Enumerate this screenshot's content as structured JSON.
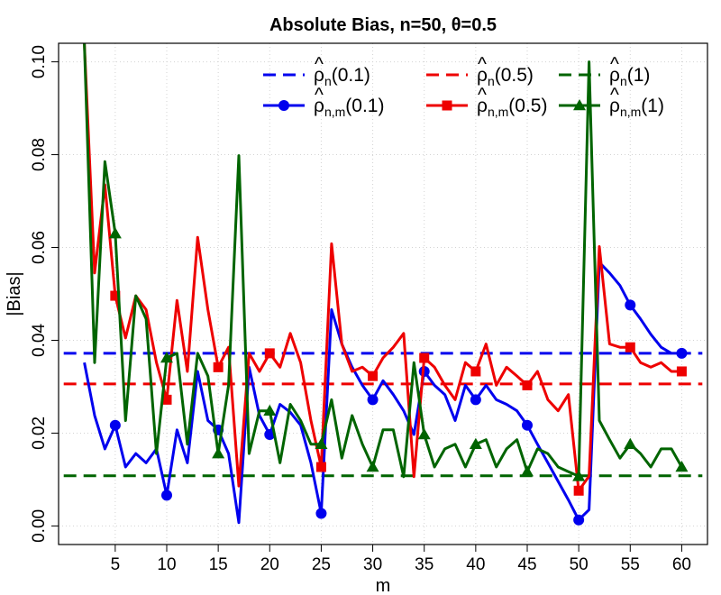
{
  "chart_data": {
    "type": "line",
    "title": "Absolute Bias, n=50, θ=0.5",
    "xlabel": "m",
    "ylabel": "|Bias|",
    "xlim": [
      -0.5,
      62.5
    ],
    "ylim": [
      -0.004,
      0.104
    ],
    "x_ticks": [
      5,
      10,
      15,
      20,
      25,
      30,
      35,
      40,
      45,
      50,
      55,
      60
    ],
    "y_ticks": [
      0.0,
      0.02,
      0.04,
      0.06,
      0.08,
      0.1
    ],
    "y_tick_labels": [
      "0.00",
      "0.02",
      "0.04",
      "0.06",
      "0.08",
      "0.10"
    ],
    "grid": true,
    "legend_placement": "top-right",
    "series": [
      {
        "key": "rho_n_0_1",
        "legend": {
          "base": "ρ",
          "sub": "n",
          "arg": "(0.1)"
        },
        "color": "#0000ee",
        "style": "dashed",
        "marker": "none",
        "x": [
          0,
          62
        ],
        "values": [
          0.0372,
          0.0372
        ]
      },
      {
        "key": "rho_n_0_5",
        "legend": {
          "base": "ρ",
          "sub": "n",
          "arg": "(0.5)"
        },
        "color": "#ee0000",
        "style": "dashed",
        "marker": "none",
        "x": [
          0,
          62
        ],
        "values": [
          0.0306,
          0.0306
        ]
      },
      {
        "key": "rho_n_1",
        "legend": {
          "base": "ρ",
          "sub": "n",
          "arg": "(1)"
        },
        "color": "#006400",
        "style": "dashed",
        "marker": "none",
        "x": [
          0,
          62
        ],
        "values": [
          0.0108,
          0.0108
        ]
      },
      {
        "key": "rho_nm_0_1",
        "legend": {
          "base": "ρ",
          "sub": "n,m",
          "arg": "(0.1)"
        },
        "color": "#0000ee",
        "style": "solid",
        "marker": "circle",
        "marker_every": 5,
        "x": [
          2,
          3,
          4,
          5,
          6,
          7,
          8,
          9,
          10,
          11,
          12,
          13,
          14,
          15,
          16,
          17,
          18,
          19,
          20,
          21,
          22,
          23,
          24,
          25,
          26,
          27,
          28,
          29,
          30,
          31,
          32,
          33,
          34,
          35,
          36,
          37,
          38,
          39,
          40,
          41,
          42,
          43,
          44,
          45,
          46,
          47,
          48,
          49,
          50,
          51,
          52,
          53,
          54,
          55,
          56,
          57,
          58,
          59,
          60
        ],
        "values": [
          0.0352,
          0.0238,
          0.0166,
          0.0217,
          0.0127,
          0.0156,
          0.0136,
          0.0166,
          0.0066,
          0.0207,
          0.0136,
          0.0333,
          0.0227,
          0.0207,
          0.0156,
          0.0007,
          0.0342,
          0.0238,
          0.0197,
          0.0262,
          0.0245,
          0.0217,
          0.0136,
          0.0027,
          0.0466,
          0.0392,
          0.0342,
          0.0303,
          0.0272,
          0.0313,
          0.0283,
          0.0248,
          0.0197,
          0.0333,
          0.0303,
          0.0283,
          0.0227,
          0.0303,
          0.0272,
          0.0303,
          0.0272,
          0.0262,
          0.0248,
          0.0217,
          0.0176,
          0.0136,
          0.0096,
          0.0056,
          0.0013,
          0.0035,
          0.0568,
          0.0545,
          0.0518,
          0.0476,
          0.0446,
          0.0413,
          0.0385,
          0.0372,
          0.0372
        ]
      },
      {
        "key": "rho_nm_0_5",
        "legend": {
          "base": "ρ",
          "sub": "n,m",
          "arg": "(0.5)"
        },
        "color": "#ee0000",
        "style": "solid",
        "marker": "square",
        "marker_every": 5,
        "x": [
          2,
          3,
          4,
          5,
          6,
          7,
          8,
          9,
          10,
          11,
          12,
          13,
          14,
          15,
          16,
          17,
          18,
          19,
          20,
          21,
          22,
          23,
          24,
          25,
          26,
          27,
          28,
          29,
          30,
          31,
          32,
          33,
          34,
          35,
          36,
          37,
          38,
          39,
          40,
          41,
          42,
          43,
          44,
          45,
          46,
          47,
          48,
          49,
          50,
          51,
          52,
          53,
          54,
          55,
          56,
          57,
          58,
          59,
          60
        ],
        "values": [
          0.104,
          0.0545,
          0.0735,
          0.0496,
          0.0405,
          0.0496,
          0.0466,
          0.0352,
          0.0272,
          0.0486,
          0.0333,
          0.0622,
          0.0466,
          0.0342,
          0.0385,
          0.0086,
          0.0372,
          0.0333,
          0.0372,
          0.0342,
          0.0415,
          0.0352,
          0.0227,
          0.0127,
          0.0608,
          0.0392,
          0.0333,
          0.0342,
          0.0323,
          0.0362,
          0.0385,
          0.0415,
          0.0106,
          0.0362,
          0.0342,
          0.0303,
          0.0272,
          0.0352,
          0.0333,
          0.0392,
          0.0303,
          0.0342,
          0.0323,
          0.0303,
          0.0333,
          0.0272,
          0.0248,
          0.0283,
          0.0076,
          0.0107,
          0.0602,
          0.0392,
          0.0385,
          0.0385,
          0.0352,
          0.0342,
          0.0352,
          0.0333,
          0.0333
        ]
      },
      {
        "key": "rho_nm_1",
        "legend": {
          "base": "ρ",
          "sub": "n,m",
          "arg": "(1)"
        },
        "color": "#006400",
        "style": "solid",
        "marker": "triangle",
        "marker_every": 5,
        "x": [
          2,
          3,
          4,
          5,
          6,
          7,
          8,
          9,
          10,
          11,
          12,
          13,
          14,
          15,
          16,
          17,
          18,
          19,
          20,
          21,
          22,
          23,
          24,
          25,
          26,
          27,
          28,
          29,
          30,
          31,
          32,
          33,
          34,
          35,
          36,
          37,
          38,
          39,
          40,
          41,
          42,
          43,
          44,
          45,
          46,
          47,
          48,
          49,
          50,
          51,
          52,
          53,
          54,
          55,
          56,
          57,
          58,
          59,
          60
        ],
        "values": [
          0.104,
          0.0352,
          0.0785,
          0.063,
          0.0227,
          0.0496,
          0.0446,
          0.0156,
          0.0362,
          0.0372,
          0.0176,
          0.0372,
          0.0323,
          0.0156,
          0.0303,
          0.0798,
          0.0156,
          0.0248,
          0.0248,
          0.0136,
          0.0262,
          0.0227,
          0.0176,
          0.0176,
          0.0272,
          0.0146,
          0.0238,
          0.0176,
          0.0127,
          0.0207,
          0.0207,
          0.0106,
          0.0352,
          0.0197,
          0.0127,
          0.0166,
          0.0176,
          0.0127,
          0.0176,
          0.0186,
          0.0127,
          0.0166,
          0.0186,
          0.0117,
          0.0166,
          0.0156,
          0.0127,
          0.0117,
          0.0107,
          0.1,
          0.0227,
          0.0186,
          0.0146,
          0.0176,
          0.0156,
          0.0127,
          0.0166,
          0.0166,
          0.0127
        ]
      }
    ]
  }
}
